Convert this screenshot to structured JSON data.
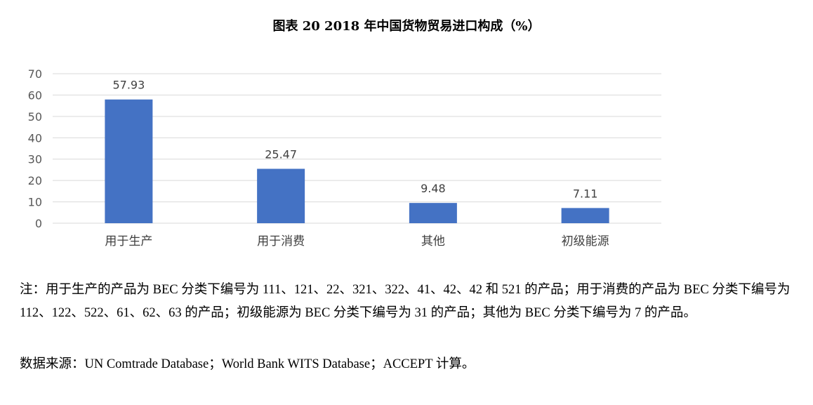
{
  "title": "图表 20  2018 年中国货物贸易进口构成（%）",
  "chart_data": {
    "type": "bar",
    "categories": [
      "用于生产",
      "用于消费",
      "其他",
      "初级能源"
    ],
    "values": [
      57.93,
      25.47,
      9.48,
      7.11
    ],
    "value_labels": [
      "57.93",
      "25.47",
      "9.48",
      "7.11"
    ],
    "y_ticks": [
      "0",
      "10",
      "20",
      "30",
      "40",
      "50",
      "60",
      "70"
    ],
    "ylim": [
      0,
      70
    ],
    "grid": true,
    "bar_color": "#4472C4",
    "grid_color": "#D9D9D9"
  },
  "note": "注：用于生产的产品为 BEC 分类下编号为 111、121、22、321、322、41、42、42 和 521 的产品；用于消费的产品为 BEC 分类下编号为 112、122、522、61、62、63 的产品；初级能源为 BEC 分类下编号为 31 的产品；其他为 BEC 分类下编号为 7 的产品。",
  "source": "数据来源：UN Comtrade Database；World Bank WITS Database；ACCEPT 计算。"
}
